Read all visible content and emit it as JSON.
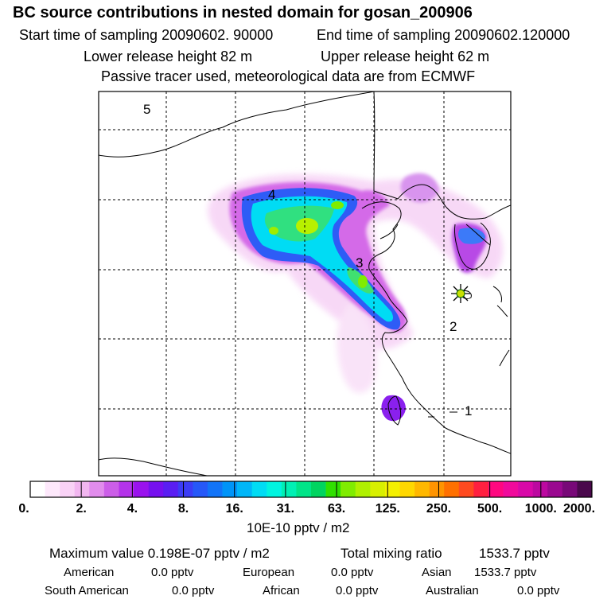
{
  "header": {
    "title": "BC  source contributions in nested domain for gosan_200906",
    "start_label": "Start time of sampling 20090602. 90000",
    "end_label": "End time of sampling 20090602.120000",
    "lower_label": "Lower release height   82 m",
    "upper_label": "Upper release height   62 m",
    "tracer_note": "Passive tracer used, meteorological data are from ECMWF"
  },
  "map": {
    "region_labels": [
      "1",
      "2",
      "3",
      "4",
      "5"
    ],
    "receptor": "station-marker-icon"
  },
  "colorbar": {
    "labels": [
      "0.",
      "2.",
      "4.",
      "8.",
      "16.",
      "31.",
      "63.",
      "125.",
      "250.",
      "500.",
      "1000.",
      "2000."
    ],
    "colors": [
      "#ffffff",
      "#fde8fb",
      "#f9d2f6",
      "#f2b6f0",
      "#e18cec",
      "#cc5ee8",
      "#b433ea",
      "#9a12ee",
      "#7610ef",
      "#5a1ef2",
      "#3c3cf6",
      "#2658f8",
      "#1274f8",
      "#0094f8",
      "#00b6f8",
      "#00dcf4",
      "#00f4e0",
      "#00f0b4",
      "#00e488",
      "#00d460",
      "#30e000",
      "#80ec00",
      "#b0f000",
      "#d8f000",
      "#f4f000",
      "#ffd800",
      "#ffb800",
      "#ff9400",
      "#ff7000",
      "#ff4a20",
      "#ff2040",
      "#ff0880",
      "#f00a9c",
      "#d808a8",
      "#bc08a0",
      "#9a0890",
      "#780878",
      "#4a084c"
    ],
    "units": "10E-10 pptv / m2"
  },
  "stats": {
    "max_label": "Maximum value  0.198E-07 pptv / m2",
    "total_label": "Total mixing ratio",
    "total_value": "1533.7 pptv"
  },
  "regions": [
    {
      "name": "American",
      "value": "0.0 pptv"
    },
    {
      "name": "European",
      "value": "0.0 pptv"
    },
    {
      "name": "Asian",
      "value": "1533.7 pptv"
    },
    {
      "name": "South American",
      "value": "0.0 pptv"
    },
    {
      "name": "African",
      "value": "0.0 pptv"
    },
    {
      "name": "Australian",
      "value": "0.0 pptv"
    }
  ]
}
